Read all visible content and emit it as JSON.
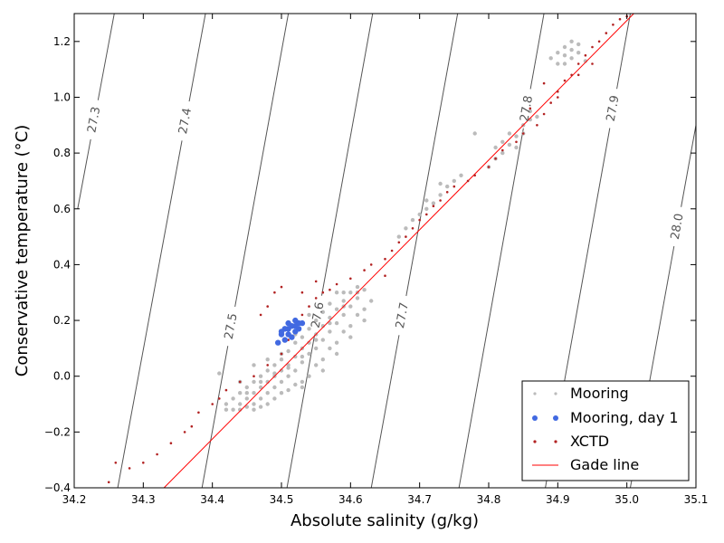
{
  "chart_data": {
    "type": "scatter",
    "xlabel": "Absolute salinity (g/kg)",
    "ylabel": "Conservative temperature (°C)",
    "xlim": [
      34.2,
      35.1
    ],
    "ylim": [
      -0.4,
      1.3
    ],
    "x_ticks": [
      "34.2",
      "34.3",
      "34.4",
      "34.5",
      "34.6",
      "34.7",
      "34.8",
      "34.9",
      "35.0",
      "35.1"
    ],
    "y_ticks": [
      "−0.4",
      "−0.2",
      "0.0",
      "0.2",
      "0.4",
      "0.6",
      "0.8",
      "1.0",
      "1.2"
    ],
    "grid": false,
    "legend_position": "bottom-right",
    "colors": {
      "mooring": "#bbbbbb",
      "mooring_day1": "#4169e1",
      "xctd": "#b22222",
      "gade": "#ff0000",
      "contour": "#555555"
    },
    "density_contours": [
      {
        "label": "27.3",
        "line": [
          [
            34.205,
            0.6
          ],
          [
            34.258,
            1.3
          ]
        ],
        "label_at": [
          34.228,
          0.92
        ]
      },
      {
        "label": "27.4",
        "line": [
          [
            34.263,
            -0.4
          ],
          [
            34.39,
            1.3
          ]
        ],
        "label_at": [
          34.35,
          0.92
        ]
      },
      {
        "label": "27.5",
        "line": [
          [
            34.385,
            -0.4
          ],
          [
            34.51,
            1.3
          ]
        ],
        "label_at": [
          34.425,
          0.18
        ]
      },
      {
        "label": "27.6",
        "line": [
          [
            34.508,
            -0.4
          ],
          [
            34.632,
            1.3
          ]
        ],
        "label_at": [
          34.55,
          0.22
        ]
      },
      {
        "label": "27.7",
        "line": [
          [
            34.63,
            -0.4
          ],
          [
            34.755,
            1.3
          ]
        ],
        "label_at": [
          34.67,
          0.22
        ]
      },
      {
        "label": "27.8",
        "line": [
          [
            34.757,
            -0.4
          ],
          [
            34.88,
            1.3
          ]
        ],
        "label_at": [
          34.853,
          0.96
        ]
      },
      {
        "label": "27.9",
        "line": [
          [
            34.882,
            -0.4
          ],
          [
            35.005,
            1.3
          ]
        ],
        "label_at": [
          34.98,
          0.96
        ]
      },
      {
        "label": "28.0",
        "line": [
          [
            35.005,
            -0.4
          ],
          [
            35.1,
            0.9
          ]
        ],
        "label_at": [
          35.065,
          0.54
        ]
      }
    ],
    "series": [
      {
        "name": "Mooring",
        "marker": "dot",
        "points": [
          [
            34.43,
            -0.12
          ],
          [
            34.44,
            -0.1
          ],
          [
            34.45,
            -0.08
          ],
          [
            34.46,
            -0.06
          ],
          [
            34.47,
            -0.04
          ],
          [
            34.48,
            -0.02
          ],
          [
            34.49,
            0.0
          ],
          [
            34.5,
            0.02
          ],
          [
            34.51,
            0.04
          ],
          [
            34.52,
            0.07
          ],
          [
            34.53,
            0.1
          ],
          [
            34.54,
            0.12
          ],
          [
            34.55,
            0.15
          ],
          [
            34.56,
            0.18
          ],
          [
            34.57,
            0.21
          ],
          [
            34.58,
            0.24
          ],
          [
            34.59,
            0.27
          ],
          [
            34.6,
            0.3
          ],
          [
            34.45,
            -0.11
          ],
          [
            34.46,
            -0.1
          ],
          [
            34.47,
            -0.08
          ],
          [
            34.48,
            -0.06
          ],
          [
            34.49,
            -0.04
          ],
          [
            34.5,
            -0.02
          ],
          [
            34.51,
            0.0
          ],
          [
            34.52,
            0.02
          ],
          [
            34.53,
            0.05
          ],
          [
            34.54,
            0.08
          ],
          [
            34.55,
            0.1
          ],
          [
            34.56,
            0.13
          ],
          [
            34.57,
            0.16
          ],
          [
            34.58,
            0.19
          ],
          [
            34.59,
            0.22
          ],
          [
            34.6,
            0.25
          ],
          [
            34.61,
            0.28
          ],
          [
            34.62,
            0.31
          ],
          [
            34.44,
            -0.06
          ],
          [
            34.45,
            -0.04
          ],
          [
            34.46,
            -0.02
          ],
          [
            34.47,
            0.0
          ],
          [
            34.48,
            0.02
          ],
          [
            34.49,
            0.04
          ],
          [
            34.5,
            0.06
          ],
          [
            34.51,
            0.09
          ],
          [
            34.52,
            0.12
          ],
          [
            34.53,
            0.14
          ],
          [
            34.54,
            0.17
          ],
          [
            34.55,
            0.2
          ],
          [
            34.56,
            0.23
          ],
          [
            34.57,
            0.26
          ],
          [
            34.47,
            -0.11
          ],
          [
            34.49,
            -0.08
          ],
          [
            34.51,
            -0.05
          ],
          [
            34.53,
            -0.02
          ],
          [
            34.55,
            0.04
          ],
          [
            34.57,
            0.1
          ],
          [
            34.59,
            0.16
          ],
          [
            34.61,
            0.22
          ],
          [
            34.42,
            -0.1
          ],
          [
            34.44,
            -0.12
          ],
          [
            34.46,
            -0.12
          ],
          [
            34.48,
            -0.1
          ],
          [
            34.5,
            -0.06
          ],
          [
            34.52,
            -0.03
          ],
          [
            34.54,
            0.0
          ],
          [
            34.56,
            0.06
          ],
          [
            34.58,
            0.12
          ],
          [
            34.6,
            0.18
          ],
          [
            34.62,
            0.24
          ],
          [
            34.43,
            -0.08
          ],
          [
            34.45,
            -0.06
          ],
          [
            34.47,
            -0.02
          ],
          [
            34.49,
            0.01
          ],
          [
            34.51,
            0.03
          ],
          [
            34.53,
            0.07
          ],
          [
            34.55,
            0.13
          ],
          [
            34.57,
            0.19
          ],
          [
            34.59,
            0.25
          ],
          [
            34.61,
            0.3
          ],
          [
            34.5,
            0.08
          ],
          [
            34.52,
            0.15
          ],
          [
            34.54,
            0.22
          ],
          [
            34.48,
            0.06
          ],
          [
            34.46,
            0.04
          ],
          [
            34.44,
            -0.02
          ],
          [
            34.53,
            -0.04
          ],
          [
            34.56,
            0.02
          ],
          [
            34.58,
            0.08
          ],
          [
            34.6,
            0.14
          ],
          [
            34.62,
            0.2
          ],
          [
            34.63,
            0.27
          ],
          [
            34.61,
            0.32
          ],
          [
            34.59,
            0.3
          ],
          [
            34.41,
            0.01
          ],
          [
            34.42,
            -0.12
          ],
          [
            34.58,
            0.3
          ],
          [
            34.7,
            0.58
          ],
          [
            34.71,
            0.6
          ],
          [
            34.72,
            0.62
          ],
          [
            34.73,
            0.65
          ],
          [
            34.74,
            0.68
          ],
          [
            34.75,
            0.7
          ],
          [
            34.69,
            0.56
          ],
          [
            34.68,
            0.53
          ],
          [
            34.67,
            0.5
          ],
          [
            34.71,
            0.63
          ],
          [
            34.73,
            0.69
          ],
          [
            34.76,
            0.72
          ],
          [
            34.8,
            0.75
          ],
          [
            34.81,
            0.78
          ],
          [
            34.82,
            0.8
          ],
          [
            34.83,
            0.83
          ],
          [
            34.84,
            0.86
          ],
          [
            34.85,
            0.9
          ],
          [
            34.86,
            0.92
          ],
          [
            34.82,
            0.84
          ],
          [
            34.83,
            0.87
          ],
          [
            34.84,
            0.82
          ],
          [
            34.85,
            0.87
          ],
          [
            34.86,
            0.95
          ],
          [
            34.87,
            0.93
          ],
          [
            34.81,
            0.82
          ],
          [
            34.78,
            0.87
          ],
          [
            34.9,
            1.12
          ],
          [
            34.91,
            1.15
          ],
          [
            34.92,
            1.17
          ],
          [
            34.93,
            1.19
          ],
          [
            34.9,
            1.16
          ],
          [
            34.91,
            1.12
          ],
          [
            34.92,
            1.14
          ],
          [
            34.93,
            1.16
          ],
          [
            34.92,
            1.2
          ],
          [
            34.89,
            1.14
          ],
          [
            34.94,
            1.13
          ],
          [
            34.91,
            1.18
          ]
        ]
      },
      {
        "name": "Mooring, day 1",
        "marker": "circle",
        "points": [
          [
            34.495,
            0.12
          ],
          [
            34.5,
            0.15
          ],
          [
            34.505,
            0.17
          ],
          [
            34.51,
            0.19
          ],
          [
            34.515,
            0.18
          ],
          [
            34.52,
            0.2
          ],
          [
            34.525,
            0.19
          ],
          [
            34.51,
            0.15
          ],
          [
            34.515,
            0.14
          ],
          [
            34.52,
            0.16
          ],
          [
            34.505,
            0.13
          ],
          [
            34.5,
            0.16
          ],
          [
            34.51,
            0.17
          ],
          [
            34.52,
            0.18
          ],
          [
            34.53,
            0.19
          ],
          [
            34.525,
            0.17
          ]
        ]
      },
      {
        "name": "XCTD",
        "marker": "dot",
        "points": [
          [
            34.25,
            -0.38
          ],
          [
            34.26,
            -0.31
          ],
          [
            34.28,
            -0.33
          ],
          [
            34.3,
            -0.31
          ],
          [
            34.32,
            -0.28
          ],
          [
            34.34,
            -0.24
          ],
          [
            34.36,
            -0.2
          ],
          [
            34.37,
            -0.18
          ],
          [
            34.38,
            -0.13
          ],
          [
            34.4,
            -0.1
          ],
          [
            34.41,
            -0.08
          ],
          [
            34.42,
            -0.05
          ],
          [
            34.44,
            -0.02
          ],
          [
            34.46,
            0.0
          ],
          [
            34.48,
            0.04
          ],
          [
            34.5,
            0.08
          ],
          [
            34.51,
            0.13
          ],
          [
            34.52,
            0.16
          ],
          [
            34.53,
            0.22
          ],
          [
            34.54,
            0.25
          ],
          [
            34.55,
            0.28
          ],
          [
            34.56,
            0.3
          ],
          [
            34.57,
            0.31
          ],
          [
            34.58,
            0.33
          ],
          [
            34.6,
            0.35
          ],
          [
            34.62,
            0.38
          ],
          [
            34.63,
            0.4
          ],
          [
            34.65,
            0.42
          ],
          [
            34.66,
            0.45
          ],
          [
            34.67,
            0.48
          ],
          [
            34.68,
            0.5
          ],
          [
            34.69,
            0.53
          ],
          [
            34.7,
            0.56
          ],
          [
            34.71,
            0.58
          ],
          [
            34.72,
            0.61
          ],
          [
            34.73,
            0.63
          ],
          [
            34.74,
            0.66
          ],
          [
            34.75,
            0.68
          ],
          [
            34.77,
            0.7
          ],
          [
            34.78,
            0.72
          ],
          [
            34.8,
            0.75
          ],
          [
            34.81,
            0.78
          ],
          [
            34.82,
            0.81
          ],
          [
            34.84,
            0.84
          ],
          [
            34.85,
            0.87
          ],
          [
            34.87,
            0.9
          ],
          [
            34.88,
            0.94
          ],
          [
            34.89,
            0.98
          ],
          [
            34.9,
            1.02
          ],
          [
            34.91,
            1.06
          ],
          [
            34.92,
            1.08
          ],
          [
            34.93,
            1.12
          ],
          [
            34.94,
            1.15
          ],
          [
            34.95,
            1.18
          ],
          [
            34.96,
            1.2
          ],
          [
            34.97,
            1.23
          ],
          [
            34.98,
            1.26
          ],
          [
            34.99,
            1.28
          ],
          [
            35.0,
            1.29
          ],
          [
            34.5,
            0.32
          ],
          [
            34.49,
            0.3
          ],
          [
            34.48,
            0.25
          ],
          [
            34.47,
            0.22
          ],
          [
            34.53,
            0.3
          ],
          [
            34.55,
            0.34
          ],
          [
            34.65,
            0.36
          ],
          [
            34.86,
            0.96
          ],
          [
            34.88,
            1.05
          ],
          [
            34.9,
            1.0
          ],
          [
            34.93,
            1.08
          ],
          [
            34.95,
            1.12
          ]
        ]
      },
      {
        "name": "Gade line",
        "marker": "line",
        "points": [
          [
            34.33,
            -0.4
          ],
          [
            35.01,
            1.3
          ]
        ]
      }
    ]
  }
}
